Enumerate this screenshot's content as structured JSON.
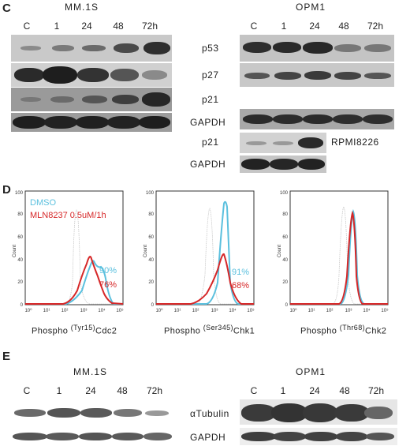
{
  "panels": {
    "C": {
      "letter": "C",
      "left_title": "MM.1S",
      "right_title": "OPM1",
      "left_lanes": [
        "C",
        "1",
        "24",
        "48",
        "72h"
      ],
      "right_lanes": [
        "C",
        "1",
        "24",
        "48",
        "72h"
      ],
      "proteins": [
        "p53",
        "p27",
        "p21",
        "GAPDH",
        "p21",
        "GAPDH"
      ],
      "cell_line": "RPMI8226"
    },
    "D": {
      "letter": "D",
      "legend": [
        "DMSO",
        "MLN8237 0.5uM/1h"
      ],
      "histograms": [
        {
          "caption_pre": "Phospho ",
          "caption_sup": "(Tyr15)",
          "caption_post": "Cdc2",
          "pct_dmso": "90%",
          "pct_mln": "76%"
        },
        {
          "caption_pre": "Phospho ",
          "caption_sup": "(Ser345)",
          "caption_post": "Chk1",
          "pct_dmso": "91%",
          "pct_mln": "68%"
        },
        {
          "caption_pre": "Phospho ",
          "caption_sup": "(Thr68)",
          "caption_post": "Chk2",
          "pct_dmso": "",
          "pct_mln": ""
        }
      ],
      "y_ticks": [
        "0",
        "20",
        "40",
        "60",
        "80",
        "100"
      ],
      "y_label": "Count",
      "x_ticks": [
        "10⁰",
        "10¹",
        "10²",
        "10³",
        "10⁴",
        "10⁵"
      ]
    },
    "E": {
      "letter": "E",
      "left_title": "MM.1S",
      "right_title": "OPM1",
      "left_lanes": [
        "C",
        "1",
        "24",
        "48",
        "72h"
      ],
      "right_lanes": [
        "C",
        "1",
        "24",
        "48",
        "72h"
      ],
      "proteins": [
        "αTubulin",
        "GAPDH"
      ]
    }
  },
  "colors": {
    "dmso": "#5bc0de",
    "mln": "#d62728",
    "isotype": "#bbbbbb"
  }
}
